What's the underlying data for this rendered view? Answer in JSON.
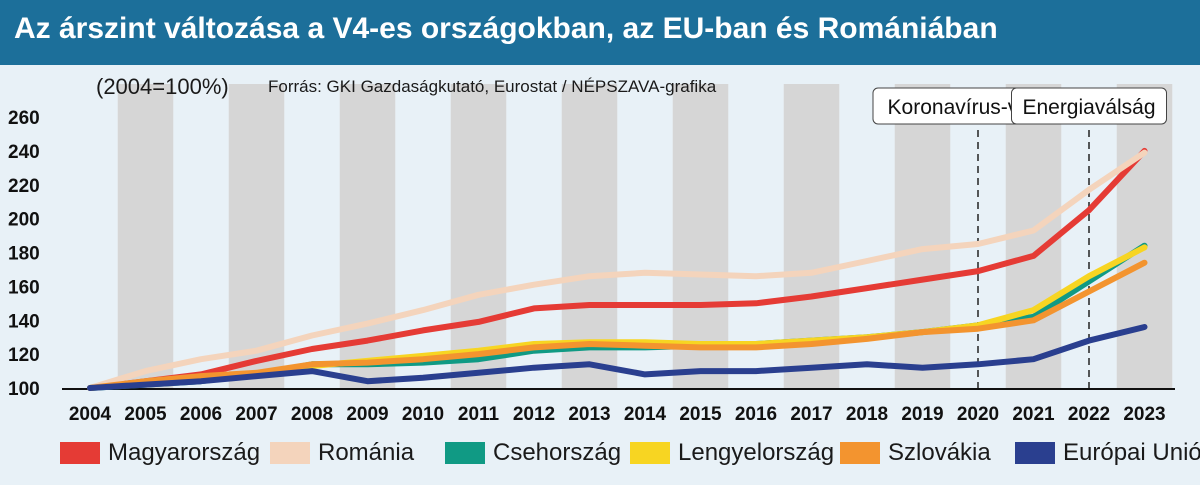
{
  "header": {
    "title": "Az árszint változása a V4-es országokban, az EU-ban és Romániában"
  },
  "chart_data": {
    "type": "line",
    "subtitle": "(2004=100%)",
    "source": "Forrás: GKI Gazdaságkutató, Eurostat / NÉPSZAVA-grafika",
    "categories": [
      "2004",
      "2005",
      "2006",
      "2007",
      "2008",
      "2009",
      "2010",
      "2011",
      "2012",
      "2013",
      "2014",
      "2015",
      "2016",
      "2017",
      "2018",
      "2019",
      "2020",
      "2021",
      "2022",
      "2023"
    ],
    "ylim": [
      100,
      260
    ],
    "yticks": [
      "100",
      "120",
      "140",
      "160",
      "180",
      "200",
      "220",
      "240",
      "260"
    ],
    "grid": "alternating vertical bands",
    "legend_position": "bottom",
    "annotations": [
      {
        "label": "Koronavírus-válság",
        "year": "2020"
      },
      {
        "label": "Energiaválság",
        "year": "2022"
      }
    ],
    "series": [
      {
        "name": "Magyarország",
        "color": "#e53b35",
        "values": [
          100,
          104,
          108,
          116,
          123,
          128,
          134,
          139,
          147,
          149,
          149,
          149,
          150,
          154,
          159,
          164,
          169,
          178,
          205,
          240
        ]
      },
      {
        "name": "Románia",
        "color": "#f4d4bc",
        "values": [
          100,
          110,
          117,
          122,
          131,
          138,
          146,
          155,
          161,
          166,
          168,
          167,
          166,
          168,
          175,
          182,
          185,
          193,
          217,
          239
        ]
      },
      {
        "name": "Csehország",
        "color": "#109a84",
        "values": [
          100,
          102,
          104,
          108,
          114,
          114,
          115,
          117,
          122,
          124,
          124,
          125,
          126,
          128,
          130,
          133,
          137,
          142,
          163,
          184
        ]
      },
      {
        "name": "Lengyelország",
        "color": "#f7d522",
        "values": [
          100,
          103,
          105,
          108,
          113,
          116,
          119,
          122,
          126,
          127,
          127,
          126,
          126,
          128,
          130,
          133,
          137,
          146,
          166,
          183
        ]
      },
      {
        "name": "Szlovákia",
        "color": "#f3942f",
        "values": [
          100,
          104,
          107,
          109,
          114,
          115,
          117,
          120,
          124,
          126,
          125,
          124,
          124,
          126,
          129,
          133,
          135,
          140,
          157,
          174
        ]
      },
      {
        "name": "Európai Unió",
        "color": "#2a3f8f",
        "values": [
          100,
          102,
          104,
          107,
          110,
          104,
          106,
          109,
          112,
          114,
          108,
          110,
          110,
          112,
          114,
          112,
          114,
          117,
          128,
          136
        ]
      }
    ]
  }
}
